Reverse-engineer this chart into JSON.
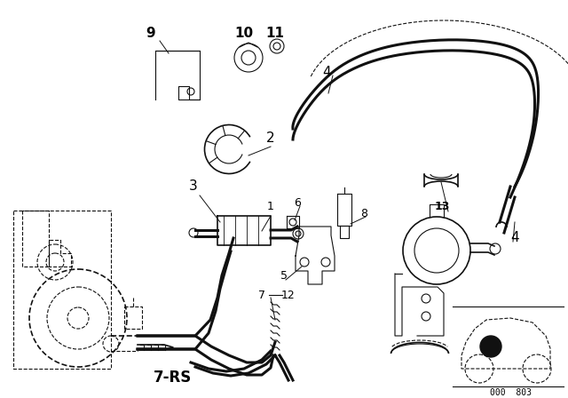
{
  "background_color": "#ffffff",
  "line_color": "#111111",
  "label_color": "#000000",
  "fig_width": 6.4,
  "fig_height": 4.48,
  "dpi": 100
}
